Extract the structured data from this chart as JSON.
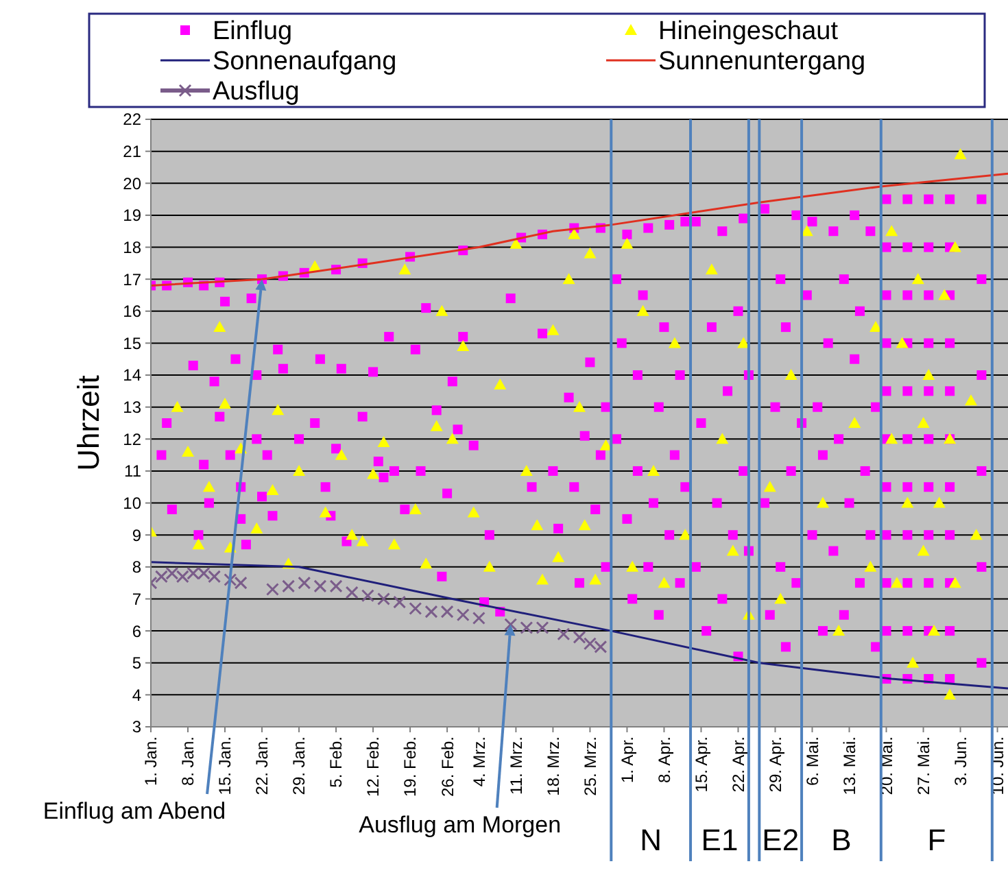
{
  "chart_data": {
    "type": "scatter",
    "ylabel": "Uhrzeit",
    "xlim": [
      "--01-01",
      "--06-12"
    ],
    "ylim": [
      3,
      22
    ],
    "yticks": [
      3,
      4,
      5,
      6,
      7,
      8,
      9,
      10,
      11,
      12,
      13,
      14,
      15,
      16,
      17,
      18,
      19,
      20,
      21,
      22
    ],
    "xticks": [
      {
        "value": "--01-01",
        "label": "1. Jan."
      },
      {
        "value": "--01-08",
        "label": "8. Jan."
      },
      {
        "value": "--01-15",
        "label": "15. Jan."
      },
      {
        "value": "--01-22",
        "label": "22. Jan."
      },
      {
        "value": "--01-29",
        "label": "29. Jan."
      },
      {
        "value": "--02-05",
        "label": "5. Feb."
      },
      {
        "value": "--02-12",
        "label": "12. Feb."
      },
      {
        "value": "--02-19",
        "label": "19. Feb."
      },
      {
        "value": "--02-26",
        "label": "26. Feb."
      },
      {
        "value": "--03-04",
        "label": "4. Mrz."
      },
      {
        "value": "--03-11",
        "label": "11. Mrz."
      },
      {
        "value": "--03-18",
        "label": "18. Mrz."
      },
      {
        "value": "--03-25",
        "label": "25. Mrz."
      },
      {
        "value": "--04-01",
        "label": "1. Apr."
      },
      {
        "value": "--04-08",
        "label": "8. Apr."
      },
      {
        "value": "--04-15",
        "label": "15. Apr."
      },
      {
        "value": "--04-22",
        "label": "22. Apr."
      },
      {
        "value": "--04-29",
        "label": "29. Apr."
      },
      {
        "value": "--05-06",
        "label": "6. Mai."
      },
      {
        "value": "--05-13",
        "label": "13. Mai."
      },
      {
        "value": "--05-20",
        "label": "20. Mai."
      },
      {
        "value": "--05-27",
        "label": "27. Mai."
      },
      {
        "value": "--06-03",
        "label": "3. Jun."
      },
      {
        "value": "--06-10",
        "label": "10. Jun."
      }
    ],
    "grid": "y",
    "legend": "top",
    "series": [
      {
        "name": "Einflug",
        "type": "scatter",
        "marker": "square",
        "color": "#ff00ff",
        "x": [
          "--01-01",
          "--01-04",
          "--01-08",
          "--01-11",
          "--01-14",
          "--01-22",
          "--01-26",
          "--01-30",
          "--02-05",
          "--02-10",
          "--02-19",
          "--03-01",
          "--03-12",
          "--03-16",
          "--03-22",
          "--03-27",
          "--01-03",
          "--01-04",
          "--01-05",
          "--01-09",
          "--01-10",
          "--01-11",
          "--01-12",
          "--01-13",
          "--01-14",
          "--01-15",
          "--01-16",
          "--01-17",
          "--01-18",
          "--01-18",
          "--01-19",
          "--01-20",
          "--01-21",
          "--01-21",
          "--01-22",
          "--01-23",
          "--01-24",
          "--01-25",
          "--01-26",
          "--01-29",
          "--02-01",
          "--02-02",
          "--02-03",
          "--02-04",
          "--02-05",
          "--02-06",
          "--02-07",
          "--02-10",
          "--02-12",
          "--02-13",
          "--02-14",
          "--02-15",
          "--02-16",
          "--02-18",
          "--02-20",
          "--02-21",
          "--02-22",
          "--02-24",
          "--02-25",
          "--02-26",
          "--02-27",
          "--02-28",
          "--03-01",
          "--03-03",
          "--03-05",
          "--03-06",
          "--03-08",
          "--03-10",
          "--03-14",
          "--03-16",
          "--03-18",
          "--03-19",
          "--03-21",
          "--03-22",
          "--03-23",
          "--03-24",
          "--03-25",
          "--03-26",
          "--03-27",
          "--03-28",
          "--03-28",
          "--03-30",
          "--03-30",
          "--03-31",
          "--04-01",
          "--04-01",
          "--04-02",
          "--04-03",
          "--04-03",
          "--04-04",
          "--04-05",
          "--04-05",
          "--04-06",
          "--04-07",
          "--04-07",
          "--04-08",
          "--04-09",
          "--04-09",
          "--04-10",
          "--04-11",
          "--04-11",
          "--04-12",
          "--04-12",
          "--04-14",
          "--04-14",
          "--04-15",
          "--04-16",
          "--04-17",
          "--04-18",
          "--04-19",
          "--04-19",
          "--04-20",
          "--04-21",
          "--04-22",
          "--04-22",
          "--04-23",
          "--04-23",
          "--04-24",
          "--04-24",
          "--04-27",
          "--04-27",
          "--04-28",
          "--04-29",
          "--04-30",
          "--04-30",
          "--05-01",
          "--05-01",
          "--05-02",
          "--05-03",
          "--05-03",
          "--05-04",
          "--05-05",
          "--05-06",
          "--05-06",
          "--05-07",
          "--05-08",
          "--05-08",
          "--05-09",
          "--05-10",
          "--05-10",
          "--05-11",
          "--05-12",
          "--05-12",
          "--05-13",
          "--05-14",
          "--05-14",
          "--05-15",
          "--05-15",
          "--05-16",
          "--05-17",
          "--05-17",
          "--05-18",
          "--05-18",
          "--05-20",
          "--05-20",
          "--05-20",
          "--05-20",
          "--05-20",
          "--05-20",
          "--05-20",
          "--05-20",
          "--05-20",
          "--05-20",
          "--05-20",
          "--05-24",
          "--05-24",
          "--05-24",
          "--05-24",
          "--05-24",
          "--05-24",
          "--05-24",
          "--05-24",
          "--05-24",
          "--05-24",
          "--05-24",
          "--05-28",
          "--05-28",
          "--05-28",
          "--05-28",
          "--05-28",
          "--05-28",
          "--05-28",
          "--05-28",
          "--05-28",
          "--05-28",
          "--05-28",
          "--06-01",
          "--06-01",
          "--06-01",
          "--06-01",
          "--06-01",
          "--06-01",
          "--06-01",
          "--06-01",
          "--06-01",
          "--06-01",
          "--06-01",
          "--06-07",
          "--06-07",
          "--06-07",
          "--06-07",
          "--06-07",
          "--06-07"
        ],
        "values": [
          16.8,
          16.8,
          16.9,
          16.8,
          16.9,
          17.0,
          17.1,
          17.2,
          17.3,
          17.5,
          17.7,
          17.9,
          18.3,
          18.4,
          18.6,
          18.6,
          11.5,
          12.5,
          9.8,
          14.3,
          9.0,
          11.2,
          10.0,
          13.8,
          12.7,
          16.3,
          11.5,
          14.5,
          10.5,
          9.5,
          8.7,
          16.4,
          12.0,
          14.0,
          10.2,
          11.5,
          9.6,
          14.8,
          14.2,
          12.0,
          12.5,
          14.5,
          10.5,
          9.6,
          11.7,
          14.2,
          8.8,
          12.7,
          14.1,
          11.3,
          10.8,
          15.2,
          11.0,
          9.8,
          14.8,
          11.0,
          16.1,
          12.9,
          7.7,
          10.3,
          13.8,
          12.3,
          15.2,
          11.8,
          6.9,
          9.0,
          6.6,
          16.4,
          10.5,
          15.3,
          11.0,
          9.2,
          13.3,
          10.5,
          7.5,
          12.1,
          14.4,
          9.8,
          11.5,
          8.0,
          13.0,
          17.0,
          12.0,
          15.0,
          9.5,
          18.4,
          7.0,
          11.0,
          14.0,
          16.5,
          8.0,
          18.6,
          10.0,
          13.0,
          6.5,
          15.5,
          9.0,
          18.7,
          11.5,
          7.5,
          14.0,
          18.8,
          10.5,
          18.8,
          8.0,
          12.5,
          6.0,
          15.5,
          10.0,
          18.5,
          7.0,
          13.5,
          9.0,
          16.0,
          5.2,
          11.0,
          18.9,
          8.5,
          14.0,
          19.2,
          10.0,
          6.5,
          13.0,
          17.0,
          8.0,
          15.5,
          5.5,
          11.0,
          19.0,
          7.5,
          12.5,
          16.5,
          9.0,
          18.8,
          13.0,
          6.0,
          11.5,
          15.0,
          18.5,
          8.5,
          12.0,
          17.0,
          6.5,
          10.0,
          14.5,
          19.0,
          7.5,
          16.0,
          11.0,
          18.5,
          9.0,
          13.0,
          5.5,
          4.5,
          6.0,
          7.5,
          9.0,
          10.5,
          12.0,
          13.5,
          15.0,
          16.5,
          18.0,
          19.5,
          4.5,
          6.0,
          7.5,
          9.0,
          10.5,
          12.0,
          13.5,
          15.0,
          16.5,
          18.0,
          19.5,
          4.5,
          6.0,
          7.5,
          9.0,
          10.5,
          12.0,
          13.5,
          15.0,
          16.5,
          18.0,
          19.5,
          4.5,
          6.0,
          7.5,
          9.0,
          10.5,
          12.0,
          13.5,
          15.0,
          16.5,
          18.0,
          19.5,
          19.5,
          17.0,
          14.0,
          11.0,
          8.0,
          5.0
        ]
      },
      {
        "name": "Hineingeschaut",
        "type": "scatter",
        "marker": "triangle",
        "color": "#ffff00",
        "x": [
          "--01-01",
          "--01-06",
          "--01-08",
          "--01-10",
          "--01-12",
          "--01-14",
          "--01-15",
          "--01-16",
          "--01-18",
          "--01-21",
          "--01-24",
          "--01-25",
          "--01-27",
          "--01-29",
          "--02-01",
          "--02-03",
          "--02-06",
          "--02-08",
          "--02-10",
          "--02-12",
          "--02-14",
          "--02-16",
          "--02-18",
          "--02-20",
          "--02-22",
          "--02-24",
          "--02-25",
          "--02-27",
          "--03-01",
          "--03-03",
          "--03-06",
          "--03-08",
          "--03-11",
          "--03-13",
          "--03-15",
          "--03-16",
          "--03-18",
          "--03-19",
          "--03-21",
          "--03-22",
          "--03-23",
          "--03-24",
          "--03-25",
          "--03-26",
          "--03-28",
          "--04-01",
          "--04-02",
          "--04-04",
          "--04-06",
          "--04-08",
          "--04-10",
          "--04-12",
          "--04-17",
          "--04-19",
          "--04-21",
          "--04-23",
          "--04-24",
          "--04-28",
          "--04-30",
          "--05-02",
          "--05-05",
          "--05-08",
          "--05-11",
          "--05-14",
          "--05-17",
          "--05-18",
          "--05-21",
          "--05-21",
          "--05-22",
          "--05-23",
          "--05-24",
          "--05-25",
          "--05-26",
          "--05-27",
          "--05-27",
          "--05-28",
          "--05-29",
          "--05-30",
          "--05-31",
          "--06-01",
          "--06-01",
          "--06-02",
          "--06-02",
          "--06-03",
          "--06-05",
          "--06-06"
        ],
        "values": [
          9.1,
          13.0,
          11.6,
          8.7,
          10.5,
          15.5,
          13.1,
          8.6,
          11.7,
          9.2,
          10.4,
          12.9,
          8.1,
          11.0,
          17.4,
          9.7,
          11.5,
          9.0,
          8.8,
          10.9,
          11.9,
          8.7,
          17.3,
          9.8,
          8.1,
          12.4,
          16.0,
          12.0,
          14.9,
          9.7,
          8.0,
          13.7,
          18.1,
          11.0,
          9.3,
          7.6,
          15.4,
          8.3,
          17.0,
          18.4,
          13.0,
          9.3,
          17.8,
          7.6,
          11.8,
          18.1,
          8.0,
          16.0,
          11.0,
          7.5,
          15.0,
          9.0,
          17.3,
          12.0,
          8.5,
          15.0,
          6.5,
          10.5,
          7.0,
          14.0,
          18.5,
          10.0,
          6.0,
          12.5,
          8.0,
          15.5,
          18.5,
          12.0,
          7.5,
          15.0,
          10.0,
          5.0,
          17.0,
          12.5,
          8.5,
          14.0,
          6.0,
          10.0,
          16.5,
          4.0,
          12.0,
          7.5,
          18.0,
          20.9,
          13.2,
          9.0
        ]
      },
      {
        "name": "Sonnenaufgang",
        "type": "line",
        "marker": "none",
        "color": "#1f1f7a",
        "x": [
          "--01-01",
          "--01-29",
          "--02-27",
          "--03-29",
          "--04-26",
          "--05-21",
          "--06-12"
        ],
        "values": [
          8.15,
          8.0,
          7.0,
          6.0,
          5.0,
          4.5,
          4.2
        ]
      },
      {
        "name": "Sunnenuntergang",
        "type": "line",
        "marker": "none",
        "color": "#e03020",
        "x": [
          "--01-01",
          "--01-22",
          "--02-12",
          "--03-04",
          "--03-18",
          "--03-29",
          "--04-26",
          "--05-19",
          "--06-12"
        ],
        "values": [
          16.8,
          17.0,
          17.5,
          18.0,
          18.5,
          18.7,
          19.4,
          19.9,
          20.3
        ]
      },
      {
        "name": "Ausflug",
        "type": "scatter",
        "marker": "cross",
        "color": "#7a5c8a",
        "x": [
          "--01-01",
          "--01-03",
          "--01-05",
          "--01-07",
          "--01-09",
          "--01-11",
          "--01-13",
          "--01-16",
          "--01-18",
          "--01-24",
          "--01-27",
          "--01-30",
          "--02-02",
          "--02-05",
          "--02-08",
          "--02-11",
          "--02-14",
          "--02-17",
          "--02-20",
          "--02-23",
          "--02-26",
          "--03-01",
          "--03-04",
          "--03-10",
          "--03-13",
          "--03-16",
          "--03-20",
          "--03-23",
          "--03-25",
          "--03-27"
        ],
        "values": [
          7.5,
          7.7,
          7.8,
          7.7,
          7.8,
          7.8,
          7.7,
          7.6,
          7.5,
          7.3,
          7.4,
          7.5,
          7.4,
          7.4,
          7.2,
          7.1,
          7.0,
          6.9,
          6.7,
          6.6,
          6.6,
          6.5,
          6.4,
          6.2,
          6.1,
          6.1,
          5.9,
          5.8,
          5.6,
          5.5
        ]
      }
    ],
    "ref_lines": [
      {
        "axis": "x",
        "value": "--03-29",
        "label": "N",
        "color": "#4f81bd"
      },
      {
        "axis": "x",
        "value": "--04-13",
        "label": "E1",
        "color": "#4f81bd"
      },
      {
        "axis": "x",
        "value": "--04-24",
        "color": "#4f81bd"
      },
      {
        "axis": "x",
        "value": "--04-26",
        "label": "E2",
        "color": "#4f81bd"
      },
      {
        "axis": "x",
        "value": "--05-04",
        "label": "B",
        "color": "#4f81bd"
      },
      {
        "axis": "x",
        "value": "--05-19",
        "label": "F",
        "color": "#4f81bd"
      },
      {
        "axis": "x",
        "value": "--06-09",
        "color": "#4f81bd"
      }
    ],
    "annotations": [
      {
        "text": "Einflug am Abend",
        "x": "--01-22",
        "y": 17.0
      },
      {
        "text": "Ausflug am Morgen",
        "x": "--03-10",
        "y": 6.2
      }
    ]
  }
}
